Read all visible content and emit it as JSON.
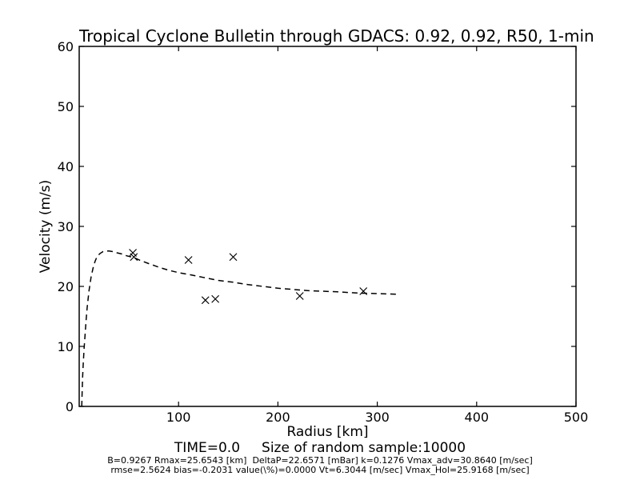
{
  "colors": {
    "background": "#ffffff",
    "axes": "#000000",
    "text": "#000000",
    "series": "#000000"
  },
  "chart_data": {
    "type": "line",
    "title": "Tropical Cyclone Bulletin through GDACS: 0.92, 0.92, R50, 1-min",
    "xlabel": "Radius [km]",
    "ylabel": "Velocity (m/s)",
    "xlim": [
      0,
      500
    ],
    "ylim": [
      0,
      60
    ],
    "xticks": [
      100,
      200,
      300,
      400,
      500
    ],
    "yticks": [
      0,
      10,
      20,
      30,
      40,
      50,
      60
    ],
    "grid": false,
    "legend": "none",
    "tick_direction": "in",
    "series": [
      {
        "name": "holland-model-curve",
        "type": "line",
        "linestyle": "dashed",
        "color": "#000000",
        "points": [
          [
            2.6,
            0
          ],
          [
            3,
            2.5
          ],
          [
            3.5,
            5
          ],
          [
            4,
            7
          ],
          [
            4.5,
            8.4
          ],
          [
            5,
            9.8
          ],
          [
            6,
            12.2
          ],
          [
            7,
            14.5
          ],
          [
            8,
            16.4
          ],
          [
            9,
            18.0
          ],
          [
            10,
            19.4
          ],
          [
            12,
            21.6
          ],
          [
            14,
            23.1
          ],
          [
            16,
            24.2
          ],
          [
            18,
            25.0
          ],
          [
            21,
            25.5
          ],
          [
            24,
            25.8
          ],
          [
            27,
            25.9
          ],
          [
            30,
            25.9
          ],
          [
            34,
            25.8
          ],
          [
            38,
            25.6
          ],
          [
            43,
            25.4
          ],
          [
            48,
            25.1
          ],
          [
            55,
            24.8
          ],
          [
            62,
            24.3
          ],
          [
            70,
            23.8
          ],
          [
            80,
            23.2
          ],
          [
            90,
            22.7
          ],
          [
            100,
            22.3
          ],
          [
            110,
            22.0
          ],
          [
            125,
            21.5
          ],
          [
            140,
            21.0
          ],
          [
            155,
            20.7
          ],
          [
            170,
            20.3
          ],
          [
            185,
            20.0
          ],
          [
            200,
            19.7
          ],
          [
            215,
            19.5
          ],
          [
            230,
            19.3
          ],
          [
            245,
            19.2
          ],
          [
            260,
            19.1
          ],
          [
            280,
            18.9
          ],
          [
            300,
            18.8
          ],
          [
            321,
            18.7
          ]
        ]
      },
      {
        "name": "sample-observations",
        "type": "scatter",
        "marker": "x",
        "color": "#000000",
        "points": [
          [
            54,
            25.6
          ],
          [
            55,
            24.9
          ],
          [
            110,
            24.4
          ],
          [
            155,
            24.9
          ],
          [
            127,
            17.7
          ],
          [
            137,
            17.9
          ],
          [
            222,
            18.4
          ],
          [
            286,
            19.2
          ]
        ]
      }
    ],
    "annotations": [
      {
        "name": "time-sample-line",
        "text": "TIME=0.0     Size of random sample:10000"
      },
      {
        "name": "params-line-1",
        "text": "B=0.9267 Rmax=25.6543 [km]  DeltaP=22.6571 [mBar] k=0.1276 Vmax_adv=30.8640 [m/sec]"
      },
      {
        "name": "params-line-2",
        "text": "rmse=2.5624 bias=-0.2031 value(\\%)=0.0000 Vt=6.3044 [m/sec] Vmax_Hol=25.9168 [m/sec]"
      }
    ]
  }
}
